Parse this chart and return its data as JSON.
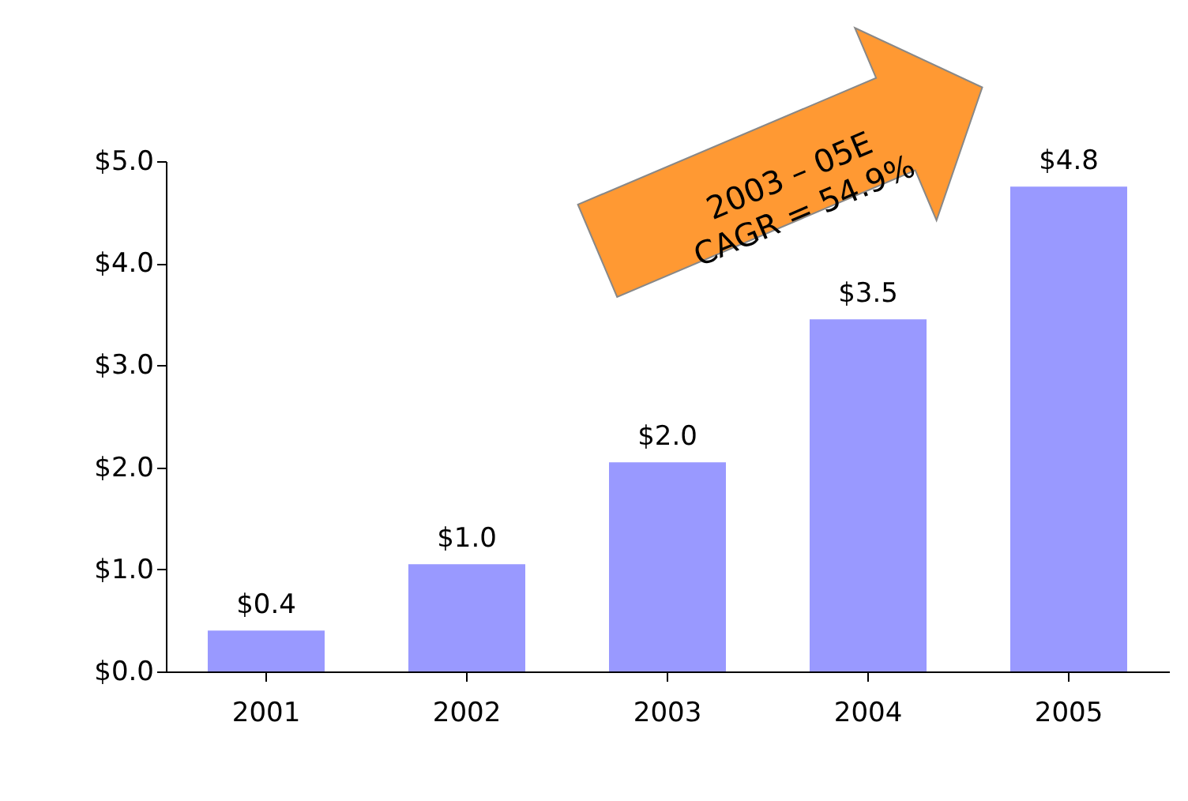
{
  "chart_data": {
    "type": "bar",
    "categories": [
      "2001",
      "2002",
      "2003",
      "2004",
      "2005"
    ],
    "values": [
      0.4,
      1.05,
      2.05,
      3.45,
      4.75
    ],
    "value_labels": [
      "$0.4",
      "$1.0",
      "$2.0",
      "$3.5",
      "$4.8"
    ],
    "color": "#9999ff",
    "ylim": [
      0,
      5
    ],
    "yticks": [
      {
        "value": 0,
        "label": "$0.0"
      },
      {
        "value": 1,
        "label": "$1.0"
      },
      {
        "value": 2,
        "label": "$2.0"
      },
      {
        "value": 3,
        "label": "$3.0"
      },
      {
        "value": 4,
        "label": "$4.0"
      },
      {
        "value": 5,
        "label": "$5.0"
      }
    ],
    "annotations": [
      "2003 – 05E\nCAGR = 54.9%"
    ],
    "grid": false
  }
}
